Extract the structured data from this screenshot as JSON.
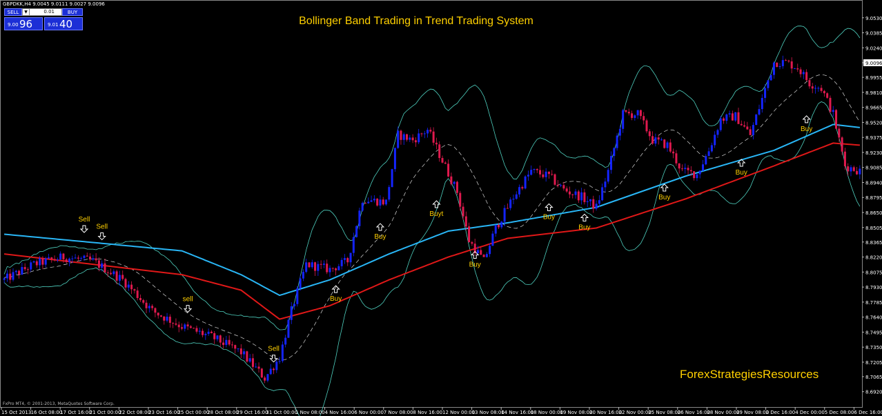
{
  "header": {
    "symbol": "GBPDKK,H4",
    "ohlc": "9.0045 9.0111 9.0027 9.0096"
  },
  "trade_panel": {
    "sell_label": "SELL",
    "buy_label": "BUY",
    "lot": "0.01",
    "sell_small": "9.00",
    "sell_big": "96",
    "buy_small": "9.01",
    "buy_big": "40"
  },
  "footer": {
    "copyright": "FxPro MT4, © 2001-2013, MetaQuotes Software Corp.",
    "brand": "ForexStrategiesResources"
  },
  "colors": {
    "bull": "#1424ff",
    "bear": "#e0194e",
    "bands": "#4fd1c0",
    "ema_fast": "#29b6f6",
    "ema_slow": "#e01818",
    "title": "#ffd000",
    "signal": "#ffd000"
  },
  "chart_data": {
    "type": "candlestick",
    "title": "Bollinger Band Trading in Trend Trading System",
    "ylim": [
      8.6785,
      9.0675
    ],
    "y_ticks": [
      "9.0530",
      "9.0385",
      "9.0240",
      "9.0096",
      "8.9955",
      "8.9810",
      "8.9665",
      "8.9520",
      "8.9375",
      "8.9230",
      "8.9085",
      "8.8940",
      "8.8795",
      "8.8650",
      "8.8505",
      "8.8365",
      "8.8220",
      "8.8075",
      "8.7930",
      "8.7785",
      "8.7640",
      "8.7495",
      "8.7350",
      "8.7205",
      "8.7065",
      "8.6920"
    ],
    "current_price": "9.0096",
    "x_labels": [
      "15 Oct 2013",
      "16 Oct 08:00",
      "17 Oct 16:00",
      "21 Oct 00:00",
      "22 Oct 08:00",
      "23 Oct 16:00",
      "25 Oct 00:00",
      "28 Oct 08:00",
      "29 Oct 16:00",
      "31 Oct 00:00",
      "1 Nov 08:00",
      "4 Nov 16:00",
      "6 Nov 00:00",
      "7 Nov 08:00",
      "8 Nov 16:00",
      "12 Nov 00:00",
      "13 Nov 08:00",
      "14 Nov 16:00",
      "18 Nov 00:00",
      "19 Nov 08:00",
      "20 Nov 16:00",
      "22 Nov 00:00",
      "25 Nov 08:00",
      "26 Nov 16:00",
      "28 Nov 00:00",
      "29 Nov 08:00",
      "2 Dec 16:00",
      "4 Dec 00:00",
      "5 Dec 08:00",
      "6 Dec 16:00"
    ],
    "price_keypoints": [
      [
        0,
        8.8
      ],
      [
        10,
        8.815
      ],
      [
        20,
        8.822
      ],
      [
        30,
        8.818
      ],
      [
        40,
        8.8
      ],
      [
        50,
        8.77
      ],
      [
        60,
        8.755
      ],
      [
        70,
        8.745
      ],
      [
        80,
        8.73
      ],
      [
        88,
        8.705
      ],
      [
        93,
        8.725
      ],
      [
        97,
        8.77
      ],
      [
        102,
        8.815
      ],
      [
        110,
        8.81
      ],
      [
        116,
        8.818
      ],
      [
        121,
        8.878
      ],
      [
        129,
        8.875
      ],
      [
        133,
        8.94
      ],
      [
        138,
        8.935
      ],
      [
        143,
        8.945
      ],
      [
        148,
        8.915
      ],
      [
        153,
        8.885
      ],
      [
        157,
        8.838
      ],
      [
        162,
        8.818
      ],
      [
        166,
        8.85
      ],
      [
        172,
        8.88
      ],
      [
        178,
        8.905
      ],
      [
        184,
        8.9
      ],
      [
        189,
        8.887
      ],
      [
        195,
        8.88
      ],
      [
        200,
        8.87
      ],
      [
        204,
        8.905
      ],
      [
        209,
        8.96
      ],
      [
        214,
        8.96
      ],
      [
        219,
        8.935
      ],
      [
        224,
        8.93
      ],
      [
        229,
        8.905
      ],
      [
        234,
        8.902
      ],
      [
        238,
        8.925
      ],
      [
        242,
        8.955
      ],
      [
        247,
        8.958
      ],
      [
        252,
        8.94
      ],
      [
        256,
        8.975
      ],
      [
        260,
        9.01
      ],
      [
        264,
        9.01
      ],
      [
        268,
        9.005
      ],
      [
        272,
        8.99
      ],
      [
        276,
        8.985
      ],
      [
        280,
        8.96
      ],
      [
        284,
        8.91
      ],
      [
        289,
        8.905
      ]
    ],
    "ema_fast_keypoints": [
      [
        0,
        8.844
      ],
      [
        60,
        8.828
      ],
      [
        80,
        8.805
      ],
      [
        93,
        8.785
      ],
      [
        110,
        8.8
      ],
      [
        130,
        8.825
      ],
      [
        150,
        8.847
      ],
      [
        170,
        8.855
      ],
      [
        200,
        8.87
      ],
      [
        230,
        8.9
      ],
      [
        260,
        8.925
      ],
      [
        280,
        8.95
      ],
      [
        289,
        8.947
      ]
    ],
    "ema_slow_keypoints": [
      [
        0,
        8.825
      ],
      [
        60,
        8.805
      ],
      [
        80,
        8.79
      ],
      [
        93,
        8.762
      ],
      [
        110,
        8.775
      ],
      [
        130,
        8.8
      ],
      [
        150,
        8.822
      ],
      [
        170,
        8.84
      ],
      [
        200,
        8.85
      ],
      [
        230,
        8.878
      ],
      [
        260,
        8.91
      ],
      [
        280,
        8.932
      ],
      [
        289,
        8.93
      ]
    ],
    "signals": [
      {
        "label": "Sell",
        "dir": "down",
        "bar": 27,
        "price": 8.847
      },
      {
        "label": "Sell",
        "dir": "down",
        "bar": 33,
        "price": 8.84
      },
      {
        "label": "sell",
        "dir": "down",
        "bar": 62,
        "price": 8.77
      },
      {
        "label": "Sell",
        "dir": "down",
        "bar": 91,
        "price": 8.722
      },
      {
        "label": "Buy",
        "dir": "up",
        "bar": 112,
        "price": 8.793
      },
      {
        "label": "Buy",
        "dir": "up",
        "bar": 127,
        "price": 8.853
      },
      {
        "label": "Buyt",
        "dir": "up",
        "bar": 146,
        "price": 8.875
      },
      {
        "label": "Buy",
        "dir": "up",
        "bar": 159,
        "price": 8.826
      },
      {
        "label": "Buy",
        "dir": "up",
        "bar": 184,
        "price": 8.872
      },
      {
        "label": "Buy",
        "dir": "up",
        "bar": 196,
        "price": 8.862
      },
      {
        "label": "Buy",
        "dir": "up",
        "bar": 223,
        "price": 8.891
      },
      {
        "label": "Buy",
        "dir": "up",
        "bar": 249,
        "price": 8.915
      },
      {
        "label": "Buy",
        "dir": "up",
        "bar": 271,
        "price": 8.957
      }
    ]
  }
}
